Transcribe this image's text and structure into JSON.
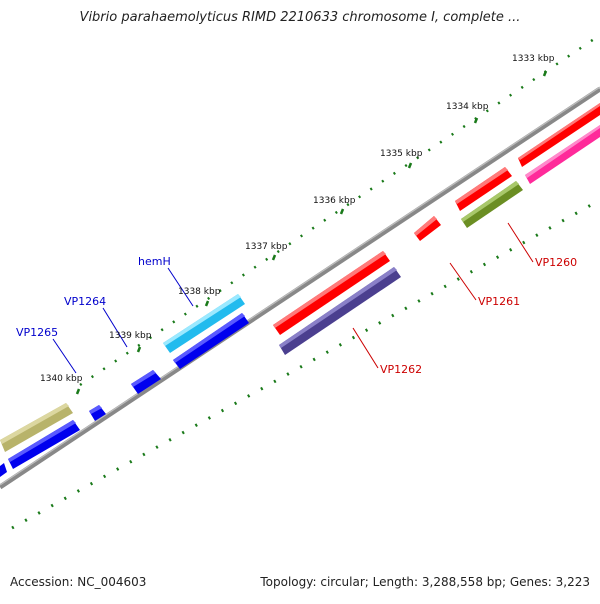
{
  "title": "Vibrio parahaemolyticus RIMD 2210633 chromosome I, complete ...",
  "accession": "Accession: NC_004603",
  "summary": "Topology: circular; Length: 3,288,558 bp; Genes: 3,223",
  "ticks": [
    {
      "label": "1333 kbp"
    },
    {
      "label": "1334 kbp"
    },
    {
      "label": "1335 kbp"
    },
    {
      "label": "1336 kbp"
    },
    {
      "label": "1337 kbp"
    },
    {
      "label": "1338 kbp"
    },
    {
      "label": "1339 kbp"
    },
    {
      "label": "1340 kbp"
    }
  ],
  "gene_labels": {
    "hemH": "hemH",
    "VP1264": "VP1264",
    "VP1265": "VP1265",
    "VP1262": "VP1262",
    "VP1261": "VP1261",
    "VP1260": "VP1260"
  },
  "colors": {
    "backbone": "#808080",
    "tick": "#1a7a1a",
    "plus_label": "#0000cc",
    "minus_label": "#cc0000",
    "red": "#ff0000",
    "magenta": "#ff2a9a",
    "olive": "#6b8e23",
    "slate": "#4b3f8f",
    "blue": "#0000ee",
    "cyan": "#33ccee",
    "khaki": "#b8b36a"
  }
}
